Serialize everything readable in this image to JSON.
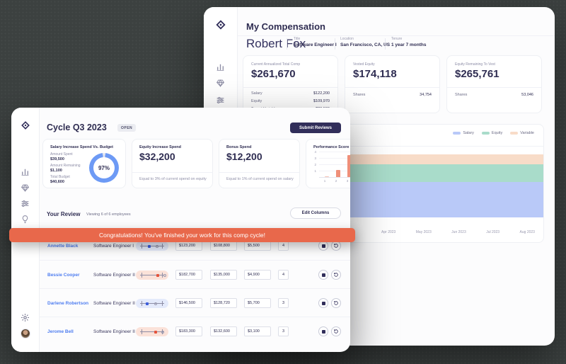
{
  "colors": {
    "banner": "#E8684B",
    "navy": "#2F2D52",
    "link_blue": "#4E7DF0",
    "donut_blue": "#6D9AF5",
    "donut_track": "#E4E7F0",
    "marker_blue": "#3D5EDB",
    "marker_red": "#E4533C",
    "bar_salmon": "#EF8F79",
    "band_salary": "#B9C9F8",
    "band_equity": "#A9DCCA",
    "band_variable": "#F8DCC8"
  },
  "back_window": {
    "title": "My Compensation",
    "sidebar_icons": [
      "app-logo",
      "analytics",
      "gem",
      "sliders",
      "lightbulb"
    ],
    "employee": {
      "name": "Robert Fox",
      "fields": [
        {
          "label": "Title",
          "value": "Software Engineer I"
        },
        {
          "label": "Location",
          "value": "San Francisco, CA, US"
        },
        {
          "label": "Tenure",
          "value": "1 year 7 months"
        }
      ]
    },
    "cards": [
      {
        "label": "Current Annualized Total Comp",
        "value": "$261,670",
        "rows": [
          {
            "label": "Salary",
            "value": "$122,200"
          },
          {
            "label": "Equity",
            "value": "$109,970"
          },
          {
            "label": "Target Variable",
            "value": "$29,500"
          }
        ]
      },
      {
        "label": "Vested Equity",
        "value": "$174,118",
        "rows": [
          {
            "label": "Shares",
            "value": "34,754"
          }
        ]
      },
      {
        "label": "Equity Remaining To Vest",
        "value": "$265,761",
        "rows": [
          {
            "label": "Shares",
            "value": "53,046"
          }
        ]
      }
    ]
  },
  "front_window": {
    "header": {
      "title": "Cycle Q3 2023",
      "status": "OPEN",
      "submit_button": "Submit Reviews"
    },
    "sidebar_icons": [
      "app-logo",
      "analytics",
      "gem",
      "sliders",
      "lightbulb",
      "gear",
      "avatar"
    ],
    "cards": {
      "budget": {
        "title": "Salary Increase Spend Vs. Budget",
        "percent": 97,
        "percent_label": "97%",
        "stats": [
          {
            "label": "Amount Spent",
            "value": "$39,500"
          },
          {
            "label": "Amount Remaining",
            "value": "$1,100"
          },
          {
            "label": "Total Budget",
            "value": "$40,600"
          }
        ]
      },
      "equity": {
        "title": "Equity Increase Spend",
        "value": "$32,200",
        "caption": "Equal to 3% of current spend on equity"
      },
      "bonus": {
        "title": "Bonus Spend",
        "value": "$12,200",
        "caption": "Equal to 1% of current spend on salary"
      },
      "performance": {
        "title": "Performance Score"
      }
    },
    "review": {
      "title": "Your Review",
      "viewing": "Viewing 6 of 6 employees",
      "edit_columns": "Edit Columns",
      "rows": [
        {
          "name": "Annette Black",
          "title": "Software Engineer I",
          "salary": "$123,200",
          "equity": "$108,800",
          "bonus": "$5,500",
          "score": "4",
          "slider": {
            "tint": "blue",
            "marker": 38,
            "target": 60
          }
        },
        {
          "name": "Bessie Cooper",
          "title": "Software Engineer II",
          "salary": "$182,700",
          "equity": "$135,000",
          "bonus": "$4,900",
          "score": "4",
          "slider": {
            "tint": "salmon",
            "marker": 62,
            "target": 84
          }
        },
        {
          "name": "Darlene Robertson",
          "title": "Software Engineer II",
          "salary": "$146,500",
          "equity": "$128,720",
          "bonus": "$5,700",
          "score": "3",
          "slider": {
            "tint": "blue",
            "marker": 30,
            "target": 56
          }
        },
        {
          "name": "Jerome Bell",
          "title": "Software Engineer II",
          "salary": "$183,300",
          "equity": "$132,600",
          "bonus": "$3,100",
          "score": "3",
          "slider": {
            "tint": "salmon",
            "marker": 56,
            "target": 78
          }
        }
      ]
    }
  },
  "banner": {
    "text": "Congratulations! You've finished your work for this comp cycle!"
  },
  "chart_data": [
    {
      "id": "salary-budget-donut",
      "type": "pie",
      "title": "Salary Increase Spend Vs. Budget",
      "labels": [
        "Spent",
        "Remaining"
      ],
      "values": [
        97,
        3
      ],
      "center_label": "97%"
    },
    {
      "id": "performance-score",
      "type": "bar",
      "title": "Performance Score",
      "categories": [
        "1",
        "2",
        "3"
      ],
      "values": [
        0.1,
        1.1,
        3.4
      ],
      "yticks": [
        1,
        2,
        3,
        4
      ],
      "ylim": [
        0,
        4
      ],
      "note": "right edge of chart clipped by window border"
    },
    {
      "id": "comp-over-time",
      "type": "area",
      "stacked": true,
      "x": [
        "Apr 2023",
        "May 2023",
        "Jun 2023",
        "Jul 2023",
        "Aug 2023"
      ],
      "series": [
        {
          "name": "Salary",
          "values": [
            52,
            52,
            52,
            52,
            52
          ]
        },
        {
          "name": "Equity",
          "values": [
            26,
            26,
            26,
            26,
            26
          ]
        },
        {
          "name": "Variable",
          "values": [
            14,
            14,
            14,
            14,
            14
          ]
        }
      ],
      "units": "relative height % (y-axis not labeled in UI)",
      "legend_position": "top-right",
      "grid": false
    }
  ]
}
